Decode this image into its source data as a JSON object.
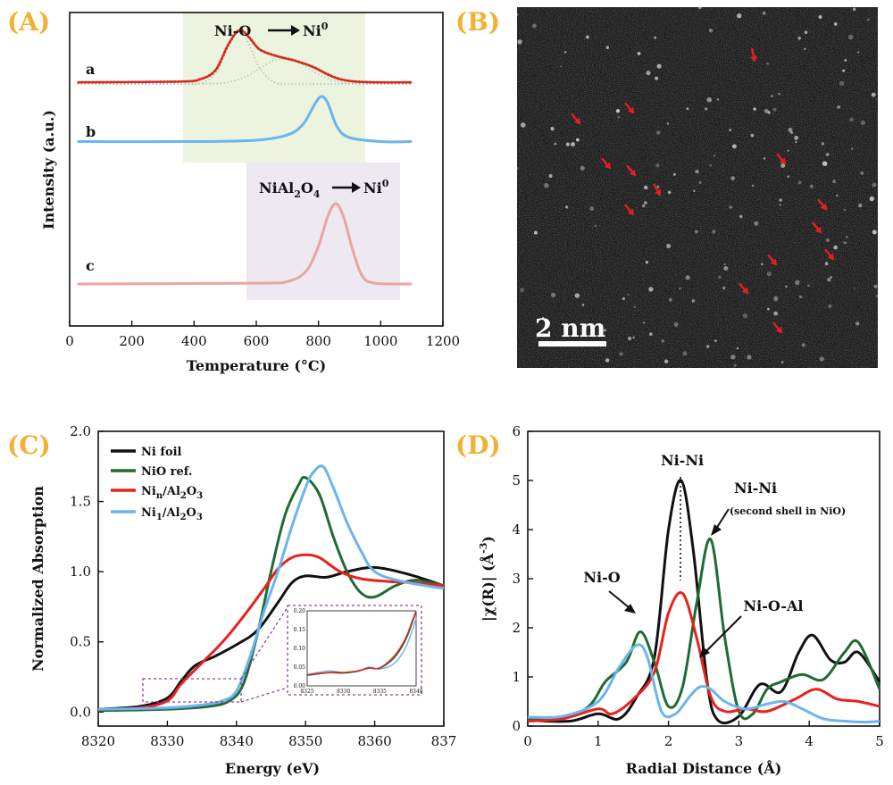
{
  "panels": {
    "A": "(A)",
    "B": "(B)",
    "C": "(C)",
    "D": "(D)"
  },
  "colors": {
    "panel_letter": "#f2b134",
    "black": "#111111",
    "green": "#1f6b33",
    "red": "#e8211b",
    "blue": "#6cb4ee",
    "pink": "#e8a6a2",
    "arrow_red": "#e02020"
  },
  "tem": {
    "scale_label": "2 nm"
  },
  "chart_data": [
    {
      "id": "A",
      "type": "line",
      "xlabel": "Temperature (°C)",
      "ylabel": "Intensity (a.u.)",
      "xlim": [
        0,
        1200
      ],
      "x_ticks": [
        "0",
        "200",
        "400",
        "600",
        "800",
        "1000",
        "1200"
      ],
      "annotations": [
        "Ni-O",
        "Ni",
        "0",
        "NiAl",
        "2",
        "O",
        "4",
        "Ni",
        "0"
      ],
      "series": [
        {
          "name": "a",
          "color": "#e8211b",
          "x": [
            25,
            350,
            420,
            470,
            510,
            545,
            575,
            610,
            660,
            720,
            780,
            830,
            870,
            920,
            1000,
            1100
          ],
          "y": [
            0.02,
            0.03,
            0.06,
            0.18,
            0.5,
            0.68,
            0.6,
            0.44,
            0.36,
            0.3,
            0.22,
            0.12,
            0.06,
            0.03,
            0.02,
            0.02
          ]
        },
        {
          "name": "b",
          "color": "#6cb4ee",
          "x": [
            25,
            400,
            600,
            700,
            750,
            790,
            810,
            830,
            860,
            900,
            1000,
            1100
          ],
          "y": [
            0.01,
            0.01,
            0.02,
            0.06,
            0.14,
            0.3,
            0.35,
            0.3,
            0.12,
            0.04,
            0.01,
            0.01
          ]
        },
        {
          "name": "c",
          "color": "#e8a6a2",
          "x": [
            25,
            600,
            700,
            760,
            800,
            830,
            855,
            880,
            910,
            940,
            980,
            1100
          ],
          "y": [
            0.0,
            0.01,
            0.03,
            0.15,
            0.45,
            0.8,
            0.95,
            0.8,
            0.4,
            0.1,
            0.01,
            0.0
          ]
        }
      ],
      "shaded_regions": [
        {
          "x": [
            370,
            950
          ],
          "label": "Ni-O → Ni0"
        },
        {
          "x": [
            560,
            1060
          ],
          "label": "NiAl2O4 → Ni0"
        }
      ]
    },
    {
      "id": "C",
      "type": "line",
      "xlabel": "Energy (eV)",
      "ylabel": "Normalized Absorption",
      "xlim": [
        8320,
        8370
      ],
      "ylim": [
        -0.1,
        2.0
      ],
      "x_ticks": [
        "8320",
        "8330",
        "8340",
        "8350",
        "8360",
        "837"
      ],
      "y_ticks": [
        "0.0",
        "0.5",
        "1.0",
        "1.5",
        "2.0"
      ],
      "legend": [
        "Ni foil",
        "NiO ref.",
        "Ni",
        "n",
        "/Al",
        "2",
        "O",
        "3",
        "Ni",
        "1",
        "/Al",
        "2",
        "O",
        "3"
      ],
      "series": [
        {
          "name": "Ni foil",
          "color": "#111111",
          "x": [
            8320,
            8326,
            8330,
            8332,
            8334,
            8337,
            8340,
            8343,
            8346,
            8348,
            8350,
            8353,
            8356,
            8360,
            8365,
            8370
          ],
          "y": [
            0.02,
            0.04,
            0.1,
            0.22,
            0.33,
            0.4,
            0.48,
            0.58,
            0.78,
            0.92,
            0.97,
            0.96,
            1.0,
            1.03,
            0.98,
            0.9
          ]
        },
        {
          "name": "NiO ref.",
          "color": "#1f6b33",
          "x": [
            8320,
            8330,
            8336,
            8339,
            8341,
            8343,
            8345,
            8347,
            8349,
            8350,
            8352,
            8354,
            8356,
            8358,
            8360,
            8363,
            8366,
            8370
          ],
          "y": [
            0.01,
            0.02,
            0.04,
            0.08,
            0.2,
            0.55,
            1.0,
            1.4,
            1.62,
            1.67,
            1.55,
            1.25,
            1.0,
            0.85,
            0.82,
            0.9,
            0.94,
            0.9
          ]
        },
        {
          "name": "Ni_n/Al2O3",
          "color": "#e8211b",
          "x": [
            8320,
            8326,
            8330,
            8332,
            8335,
            8338,
            8341,
            8344,
            8346,
            8348,
            8350,
            8352,
            8355,
            8358,
            8362,
            8366,
            8370
          ],
          "y": [
            0.02,
            0.03,
            0.08,
            0.2,
            0.35,
            0.5,
            0.68,
            0.88,
            1.02,
            1.1,
            1.12,
            1.1,
            1.0,
            0.95,
            0.93,
            0.92,
            0.9
          ]
        },
        {
          "name": "Ni_1/Al2O3",
          "color": "#6cb4ee",
          "x": [
            8320,
            8330,
            8335,
            8338,
            8340,
            8342,
            8344,
            8346,
            8348,
            8350,
            8351,
            8352.5,
            8354,
            8356,
            8358,
            8360,
            8364,
            8370
          ],
          "y": [
            0.02,
            0.03,
            0.05,
            0.08,
            0.15,
            0.4,
            0.72,
            1.0,
            1.32,
            1.6,
            1.7,
            1.75,
            1.6,
            1.35,
            1.15,
            1.0,
            0.93,
            0.88
          ]
        }
      ],
      "inset": {
        "xlim": [
          8325,
          8340
        ],
        "ylim": [
          0.0,
          0.2
        ],
        "x_ticks": [
          "8325",
          "8330",
          "8335",
          "8340"
        ],
        "y_ticks": [
          "0.00",
          "0.05",
          "0.10",
          "0.15",
          "0.20"
        ]
      }
    },
    {
      "id": "D",
      "type": "line",
      "xlabel": "Radial Distance (Å)",
      "ylabel": "|χ(R)| (Å",
      "ylabel_sup": "-3",
      "ylabel_close": ")",
      "xlim": [
        0,
        5
      ],
      "ylim": [
        0,
        6
      ],
      "x_ticks": [
        "0",
        "1",
        "2",
        "3",
        "4",
        "5"
      ],
      "y_ticks": [
        "0",
        "1",
        "2",
        "3",
        "4",
        "5",
        "6"
      ],
      "annotations": [
        "Ni-Ni",
        "Ni-Ni",
        "(second shell in NiO)",
        "Ni-O",
        "Ni-O-Al"
      ],
      "series": [
        {
          "name": "Ni foil",
          "color": "#111111",
          "x": [
            0,
            0.6,
            1.0,
            1.3,
            1.55,
            1.8,
            2.0,
            2.18,
            2.35,
            2.55,
            2.7,
            3.0,
            3.3,
            3.6,
            3.85,
            4.05,
            4.3,
            4.5,
            4.7,
            5.0
          ],
          "y": [
            0.12,
            0.1,
            0.25,
            0.15,
            0.6,
            1.4,
            4.0,
            5.0,
            3.6,
            0.9,
            0.12,
            0.2,
            0.85,
            0.7,
            1.5,
            1.85,
            1.35,
            1.3,
            1.5,
            0.9
          ]
        },
        {
          "name": "NiO ref.",
          "color": "#1f6b33",
          "x": [
            0,
            0.6,
            0.9,
            1.1,
            1.4,
            1.6,
            1.8,
            2.0,
            2.2,
            2.4,
            2.6,
            2.8,
            3.0,
            3.2,
            3.4,
            3.6,
            3.9,
            4.2,
            4.5,
            4.7,
            5.0
          ],
          "y": [
            0.15,
            0.2,
            0.45,
            0.9,
            1.3,
            1.92,
            1.3,
            0.4,
            0.8,
            2.5,
            3.8,
            1.8,
            0.3,
            0.25,
            0.75,
            0.9,
            1.05,
            0.95,
            1.5,
            1.7,
            0.75
          ]
        },
        {
          "name": "Ni_n/Al2O3",
          "color": "#e8211b",
          "x": [
            0,
            0.5,
            1.0,
            1.2,
            1.5,
            1.8,
            2.0,
            2.2,
            2.4,
            2.6,
            2.8,
            3.1,
            3.4,
            3.8,
            4.1,
            4.4,
            4.7,
            5.0
          ],
          "y": [
            0.1,
            0.15,
            0.35,
            0.25,
            0.55,
            1.1,
            2.3,
            2.7,
            1.8,
            0.6,
            0.3,
            0.35,
            0.3,
            0.55,
            0.75,
            0.55,
            0.5,
            0.4
          ]
        },
        {
          "name": "Ni_1/Al2O3",
          "color": "#6cb4ee",
          "x": [
            0,
            0.5,
            1.0,
            1.3,
            1.55,
            1.7,
            1.9,
            2.1,
            2.3,
            2.45,
            2.6,
            2.8,
            3.1,
            3.4,
            3.65,
            3.9,
            4.2,
            4.5,
            4.8,
            5.0
          ],
          "y": [
            0.18,
            0.2,
            0.5,
            1.2,
            1.65,
            1.4,
            0.3,
            0.25,
            0.6,
            0.8,
            0.75,
            0.5,
            0.35,
            0.45,
            0.5,
            0.35,
            0.15,
            0.1,
            0.08,
            0.1
          ]
        }
      ]
    }
  ]
}
